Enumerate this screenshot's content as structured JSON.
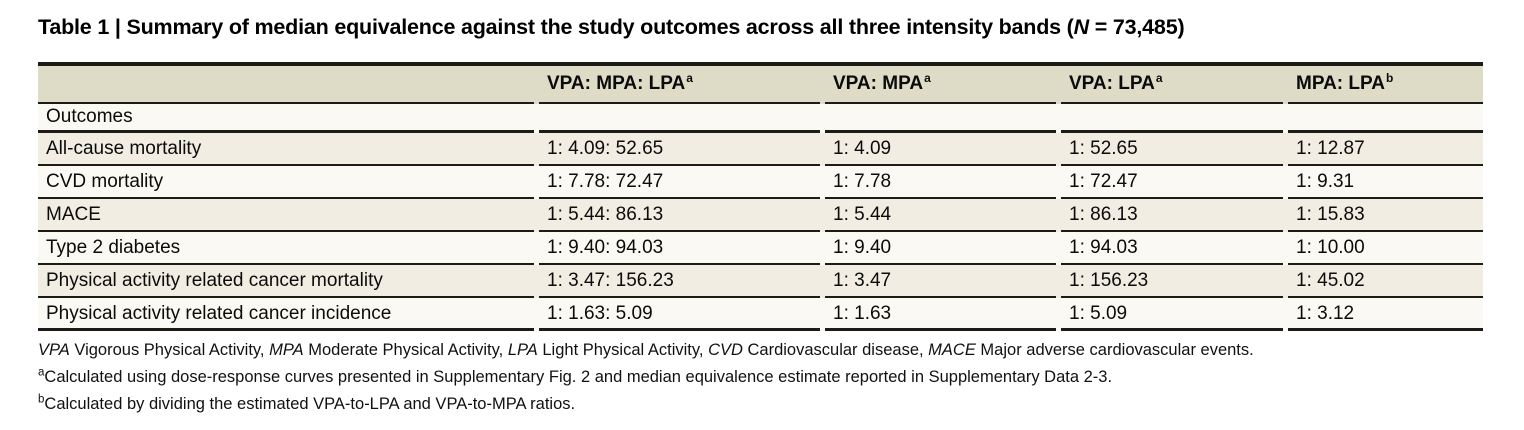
{
  "title": {
    "segments": [
      {
        "text": "Table 1 | Summary of median equivalence against the study outcomes across all three intensity bands ("
      },
      {
        "text": "N",
        "italic": true
      },
      {
        "text": " = 73,485)"
      }
    ]
  },
  "table": {
    "columns": [
      {
        "label": "",
        "sup": ""
      },
      {
        "label": "VPA: MPA: LPA",
        "sup": "a"
      },
      {
        "label": "VPA: MPA",
        "sup": "a"
      },
      {
        "label": "VPA: LPA",
        "sup": "a"
      },
      {
        "label": "MPA: LPA",
        "sup": "b"
      }
    ],
    "group_label": "Outcomes",
    "rows": [
      {
        "outcome": "All-cause mortality",
        "values": [
          "1: 4.09: 52.65",
          "1: 4.09",
          "1: 52.65",
          "1: 12.87"
        ]
      },
      {
        "outcome": "CVD mortality",
        "values": [
          "1: 7.78: 72.47",
          "1: 7.78",
          "1: 72.47",
          "1: 9.31"
        ]
      },
      {
        "outcome": "MACE",
        "values": [
          "1: 5.44: 86.13",
          "1: 5.44",
          "1: 86.13",
          "1: 15.83"
        ]
      },
      {
        "outcome": "Type 2 diabetes",
        "values": [
          "1: 9.40: 94.03",
          "1: 9.40",
          "1: 94.03",
          "1: 10.00"
        ]
      },
      {
        "outcome": "Physical activity related cancer mortality",
        "values": [
          "1: 3.47: 156.23",
          "1: 3.47",
          "1: 156.23",
          "1: 45.02"
        ]
      },
      {
        "outcome": "Physical activity related cancer incidence",
        "values": [
          "1: 1.63: 5.09",
          "1: 1.63",
          "1: 5.09",
          "1: 3.12"
        ]
      }
    ]
  },
  "footnotes": [
    {
      "sup": "",
      "segments": [
        {
          "text": "VPA",
          "italic": true
        },
        {
          "text": " Vigorous Physical Activity, "
        },
        {
          "text": "MPA",
          "italic": true
        },
        {
          "text": " Moderate Physical Activity, "
        },
        {
          "text": "LPA",
          "italic": true
        },
        {
          "text": " Light Physical Activity, "
        },
        {
          "text": "CVD",
          "italic": true
        },
        {
          "text": " Cardiovascular disease, "
        },
        {
          "text": "MACE",
          "italic": true
        },
        {
          "text": " Major adverse cardiovascular events."
        }
      ]
    },
    {
      "sup": "a",
      "segments": [
        {
          "text": "Calculated using dose-response curves presented in Supplementary Fig. 2 and median equivalence estimate reported in Supplementary Data 2-3."
        }
      ]
    },
    {
      "sup": "b",
      "segments": [
        {
          "text": "Calculated by dividing the estimated VPA-to-LPA and VPA-to-MPA ratios."
        }
      ]
    }
  ],
  "colors": {
    "page_background": "#ffffff",
    "header_bg": "#dedcc7",
    "row_beige": "#f1ede2",
    "row_cream": "#fbf9f3",
    "rule": "#1d1b15",
    "text": "#0b0b0b"
  }
}
